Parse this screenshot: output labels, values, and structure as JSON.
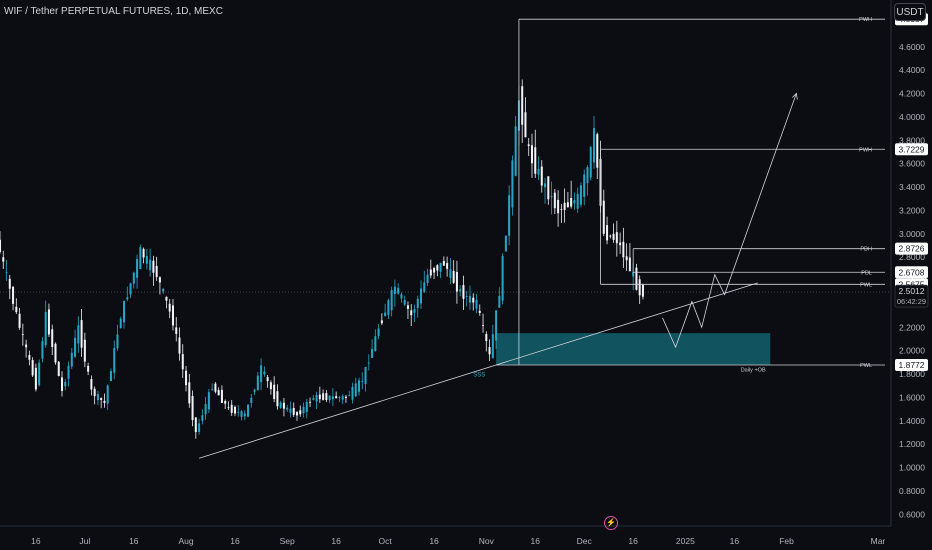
{
  "header": {
    "title": "WIF / Tether PERPETUAL FUTURES, 1D, MEXC",
    "currency_button": "USDT"
  },
  "colors": {
    "background": "#0b0d12",
    "candle_up": "#26a6c6",
    "candle_down": "#f0f3f7",
    "zone": "#14606f",
    "line": "#d1d4dc",
    "axis_text": "#b2b5be",
    "ssl_label": "#3aa8c8"
  },
  "icons": {
    "bottom_marker": "lightning-icon"
  },
  "chart_data": {
    "type": "candlestick",
    "title": "WIF / Tether PERPETUAL FUTURES, 1D, MEXC",
    "y_axis": {
      "ylim": [
        0.5,
        5.0
      ],
      "ticks": [
        "0.6000",
        "0.8000",
        "1.0000",
        "1.2000",
        "1.4000",
        "1.6000",
        "1.8000",
        "2.0000",
        "2.2000",
        "2.4000",
        "2.6000",
        "2.8000",
        "3.0000",
        "3.2000",
        "3.4000",
        "3.6000",
        "3.8000",
        "4.0000",
        "4.2000",
        "4.4000",
        "4.6000"
      ]
    },
    "x_axis": {
      "start": "2024-06-05",
      "end": "2025-03-05",
      "ticks": [
        {
          "date": "2024-06-16",
          "label": "16"
        },
        {
          "date": "2024-07-01",
          "label": "Jul"
        },
        {
          "date": "2024-07-16",
          "label": "16"
        },
        {
          "date": "2024-08-01",
          "label": "Aug"
        },
        {
          "date": "2024-08-16",
          "label": "16"
        },
        {
          "date": "2024-09-01",
          "label": "Sep"
        },
        {
          "date": "2024-09-16",
          "label": "16"
        },
        {
          "date": "2024-10-01",
          "label": "Oct"
        },
        {
          "date": "2024-10-16",
          "label": "16"
        },
        {
          "date": "2024-11-01",
          "label": "Nov"
        },
        {
          "date": "2024-11-16",
          "label": "16"
        },
        {
          "date": "2024-12-01",
          "label": "Dec"
        },
        {
          "date": "2024-12-16",
          "label": "16"
        },
        {
          "date": "2025-01-01",
          "label": "2025"
        },
        {
          "date": "2025-01-16",
          "label": "16"
        },
        {
          "date": "2025-02-01",
          "label": "Feb"
        },
        {
          "date": "2025-03-01",
          "label": "Mar"
        }
      ]
    },
    "price_path": [
      {
        "date": "2024-06-05",
        "price": 2.95
      },
      {
        "date": "2024-06-12",
        "price": 2.2
      },
      {
        "date": "2024-06-17",
        "price": 1.7
      },
      {
        "date": "2024-06-20",
        "price": 2.3
      },
      {
        "date": "2024-06-25",
        "price": 1.65
      },
      {
        "date": "2024-06-30",
        "price": 2.2
      },
      {
        "date": "2024-07-04",
        "price": 1.65
      },
      {
        "date": "2024-07-08",
        "price": 1.55
      },
      {
        "date": "2024-07-13",
        "price": 2.3
      },
      {
        "date": "2024-07-19",
        "price": 2.85
      },
      {
        "date": "2024-07-24",
        "price": 2.65
      },
      {
        "date": "2024-07-29",
        "price": 2.25
      },
      {
        "date": "2024-08-02",
        "price": 1.7
      },
      {
        "date": "2024-08-05",
        "price": 1.3
      },
      {
        "date": "2024-08-10",
        "price": 1.7
      },
      {
        "date": "2024-08-15",
        "price": 1.5
      },
      {
        "date": "2024-08-20",
        "price": 1.45
      },
      {
        "date": "2024-08-25",
        "price": 1.85
      },
      {
        "date": "2024-08-30",
        "price": 1.55
      },
      {
        "date": "2024-09-05",
        "price": 1.45
      },
      {
        "date": "2024-09-10",
        "price": 1.6
      },
      {
        "date": "2024-09-15",
        "price": 1.6
      },
      {
        "date": "2024-09-20",
        "price": 1.6
      },
      {
        "date": "2024-09-25",
        "price": 1.75
      },
      {
        "date": "2024-09-30",
        "price": 2.2
      },
      {
        "date": "2024-10-05",
        "price": 2.55
      },
      {
        "date": "2024-10-10",
        "price": 2.3
      },
      {
        "date": "2024-10-15",
        "price": 2.65
      },
      {
        "date": "2024-10-20",
        "price": 2.75
      },
      {
        "date": "2024-10-25",
        "price": 2.5
      },
      {
        "date": "2024-10-30",
        "price": 2.4
      },
      {
        "date": "2024-11-03",
        "price": 1.95
      },
      {
        "date": "2024-11-06",
        "price": 2.5
      },
      {
        "date": "2024-11-09",
        "price": 3.3
      },
      {
        "date": "2024-11-12",
        "price": 4.15
      },
      {
        "date": "2024-11-15",
        "price": 3.7
      },
      {
        "date": "2024-11-19",
        "price": 3.45
      },
      {
        "date": "2024-11-24",
        "price": 3.2
      },
      {
        "date": "2024-11-30",
        "price": 3.3
      },
      {
        "date": "2024-12-03",
        "price": 3.55
      },
      {
        "date": "2024-12-05",
        "price": 3.85
      },
      {
        "date": "2024-12-08",
        "price": 3.0
      },
      {
        "date": "2024-12-12",
        "price": 2.95
      },
      {
        "date": "2024-12-16",
        "price": 2.7
      },
      {
        "date": "2024-12-19",
        "price": 2.5
      }
    ],
    "last_price": {
      "value": "2.5012",
      "countdown": "06:42:29"
    },
    "levels": [
      {
        "label": "PWH",
        "value": 4.8357,
        "price_text": "4.8357",
        "from": "2024-11-11"
      },
      {
        "label": "PWH",
        "value": 3.7229,
        "price_text": "3.7229",
        "from": "2024-12-06"
      },
      {
        "label": "PDH",
        "value": 2.8726,
        "price_text": "2.8726",
        "from": "2024-12-16"
      },
      {
        "label": "PDL",
        "value": 2.6708,
        "price_text": "2.6708",
        "from": "2024-12-16"
      },
      {
        "label": "PWL",
        "value": 2.5675,
        "price_text": "2.5675",
        "from": "2024-12-06"
      },
      {
        "label": "PWL",
        "value": 1.8772,
        "price_text": "1.8772",
        "from": "2024-11-04"
      }
    ],
    "zone": {
      "label": "Daily +OB",
      "from": "2024-11-04",
      "to": "2025-01-27",
      "top": 2.15,
      "bottom": 1.88
    },
    "trendline": {
      "label": "SSS",
      "from": {
        "date": "2024-08-05",
        "price": 1.08
      },
      "to": {
        "date": "2025-01-14",
        "price": 2.58
      }
    },
    "projection": [
      {
        "date": "2024-12-25",
        "price": 2.28
      },
      {
        "date": "2024-12-29",
        "price": 2.03
      },
      {
        "date": "2025-01-03",
        "price": 2.42
      },
      {
        "date": "2025-01-06",
        "price": 2.2
      },
      {
        "date": "2025-01-10",
        "price": 2.65
      },
      {
        "date": "2025-01-13",
        "price": 2.48
      },
      {
        "date": "2025-02-04",
        "price": 4.2
      }
    ]
  }
}
